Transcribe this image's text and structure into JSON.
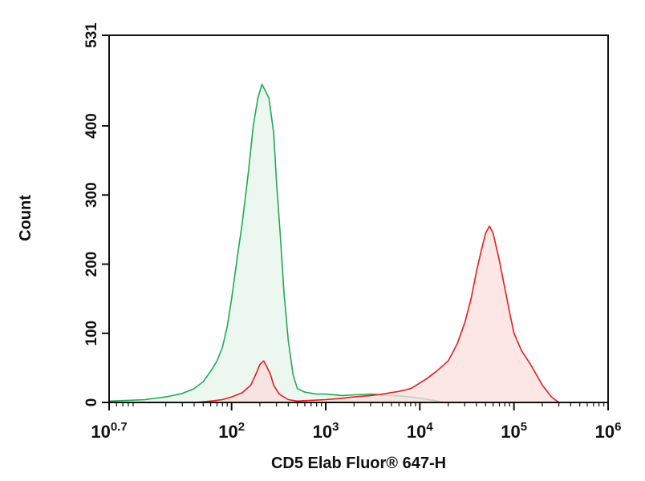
{
  "chart_data": {
    "type": "area",
    "xlabel": "CD5 Elab Fluor® 647-H",
    "ylabel": "Count",
    "x_scale": "log10",
    "xlim": [
      5.0,
      1000000
    ],
    "ylim": [
      0,
      531
    ],
    "grid": false,
    "x_ticks": [
      {
        "base": "10",
        "exp": "0.7",
        "value": 5.0
      },
      {
        "base": "10",
        "exp": "2",
        "value": 100
      },
      {
        "base": "10",
        "exp": "3",
        "value": 1000
      },
      {
        "base": "10",
        "exp": "4",
        "value": 10000
      },
      {
        "base": "10",
        "exp": "5",
        "value": 100000
      },
      {
        "base": "10",
        "exp": "6",
        "value": 1000000
      }
    ],
    "y_ticks": [
      "0",
      "100",
      "200",
      "300",
      "400",
      "531"
    ],
    "y_tick_values": [
      0,
      100,
      200,
      300,
      400,
      531
    ],
    "colors": {
      "series_1_line": "#22a85a",
      "series_1_fill": "#e6f5e9",
      "series_2_line": "#e02020",
      "series_2_fill": "#fbdede"
    },
    "series": [
      {
        "x": [
          5.0,
          8,
          12,
          20,
          30,
          40,
          50,
          60,
          70,
          80,
          90,
          100,
          115,
          130,
          150,
          170,
          190,
          210,
          230,
          250,
          280,
          300,
          330,
          360,
          400,
          450,
          500,
          600,
          800,
          1000,
          1500,
          2000,
          3000,
          5000,
          8000,
          10000,
          14000,
          18000
        ],
        "y": [
          2,
          3,
          4,
          8,
          13,
          20,
          30,
          45,
          60,
          80,
          110,
          150,
          210,
          260,
          330,
          400,
          440,
          460,
          450,
          440,
          390,
          320,
          240,
          160,
          90,
          40,
          20,
          15,
          12,
          12,
          10,
          11,
          12,
          10,
          8,
          6,
          3,
          0
        ]
      },
      {
        "x": [
          40,
          60,
          80,
          100,
          130,
          160,
          180,
          200,
          220,
          240,
          260,
          280,
          320,
          400,
          500,
          700,
          1000,
          1500,
          2000,
          3000,
          4000,
          6000,
          8000,
          10000,
          12000,
          15000,
          20000,
          25000,
          30000,
          35000,
          40000,
          45000,
          50000,
          55000,
          60000,
          70000,
          80000,
          90000,
          100000,
          120000,
          150000,
          200000,
          250000,
          300000
        ],
        "y": [
          0,
          2,
          4,
          8,
          14,
          25,
          40,
          55,
          60,
          50,
          40,
          25,
          12,
          4,
          2,
          3,
          4,
          6,
          8,
          10,
          12,
          16,
          20,
          28,
          35,
          45,
          60,
          85,
          115,
          150,
          190,
          220,
          245,
          255,
          245,
          205,
          165,
          130,
          100,
          75,
          55,
          25,
          8,
          0
        ]
      }
    ]
  }
}
